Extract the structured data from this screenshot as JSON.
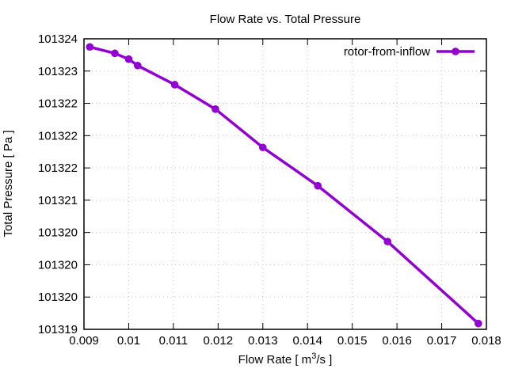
{
  "chart": {
    "title": "Flow Rate vs. Total Pressure",
    "xlabel": {
      "pre": "Flow Rate [ m",
      "sup": "3",
      "post": "/s ]"
    },
    "ylabel": "Total Pressure [ Pa ]",
    "legend": {
      "label": "rotor-from-inflow"
    }
  },
  "chart_data": {
    "type": "line",
    "title": "Flow Rate vs. Total Pressure",
    "xlabel": "Flow Rate [ m^3/s ]",
    "ylabel": "Total Pressure [ Pa ]",
    "grid": true,
    "legend_position": "top-right-inside",
    "xlim": [
      0.009,
      0.018
    ],
    "ylim": [
      101319.0,
      101324.0
    ],
    "xtick_labels": [
      "0.009",
      "0.01",
      "0.011",
      "0.012",
      "0.013",
      "0.014",
      "0.015",
      "0.016",
      "0.017",
      "0.018"
    ],
    "ytick_labels_top_to_bottom": [
      "101324",
      "101323",
      "101322",
      "101322",
      "101322",
      "101321",
      "101320",
      "101320",
      "101320",
      "101319"
    ],
    "series": [
      {
        "name": "rotor-from-inflow",
        "color": "#9400D3",
        "marker": "circle",
        "x": [
          0.00913,
          0.00969,
          0.01,
          0.0102,
          0.01103,
          0.01194,
          0.013,
          0.01423,
          0.01579,
          0.01782
        ],
        "y": [
          101323.86,
          101323.75,
          101323.65,
          101323.54,
          101323.21,
          101322.79,
          101322.13,
          101321.47,
          101320.51,
          101319.1
        ]
      }
    ]
  },
  "colors": {
    "series": "#9400D3",
    "grid": "#c8c8c8",
    "border": "#000000",
    "background": "#ffffff",
    "text": "#000000"
  }
}
